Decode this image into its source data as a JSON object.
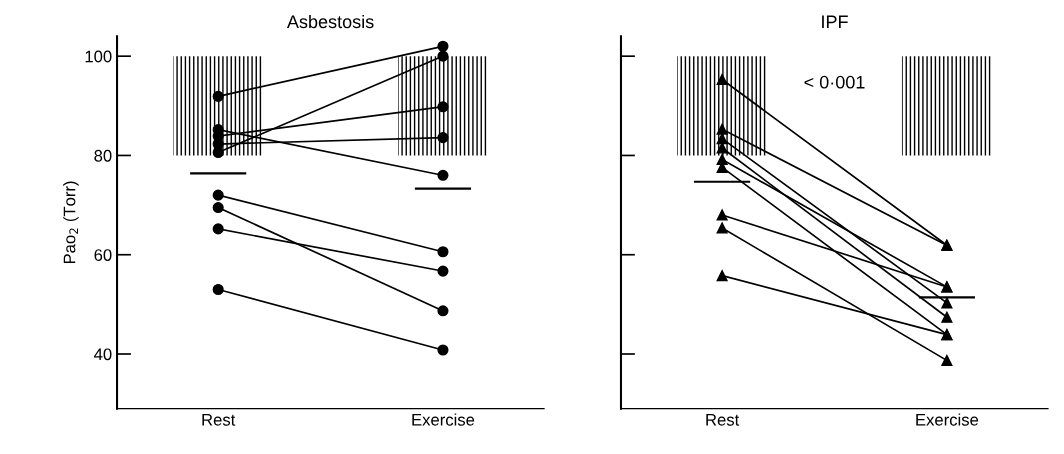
{
  "chart_data": [
    {
      "type": "line",
      "title": "Asbestosis",
      "ylabel": "Pao$_{2}$ (Torr)",
      "categories": [
        "Rest",
        "Exercise"
      ],
      "ylim": [
        29,
        104
      ],
      "yticks": [
        40,
        60,
        80,
        100
      ],
      "marker": "circle",
      "grid": false,
      "legend": false,
      "series": [
        {
          "color": "#000000",
          "values": [
            91.9,
            102
          ]
        },
        {
          "color": "#000000",
          "values": [
            85.2,
            76
          ]
        },
        {
          "color": "#000000",
          "values": [
            83.9,
            89.8
          ]
        },
        {
          "color": "#000000",
          "values": [
            82.3,
            83.6
          ]
        },
        {
          "color": "#000000",
          "values": [
            80.6,
            100
          ]
        },
        {
          "color": "#000000",
          "values": [
            72,
            60.6
          ]
        },
        {
          "color": "#000000",
          "values": [
            69.5,
            48.7
          ]
        },
        {
          "color": "#000000",
          "values": [
            65.2,
            56.7
          ]
        },
        {
          "color": "#000000",
          "values": [
            53,
            40.8
          ]
        },
        {
          "type": "bar",
          "color": "#000000",
          "base": [
            80,
            80
          ],
          "values": [
            20,
            20
          ]
        }
      ],
      "ref_lines": [
        {
          "axis": "y",
          "value": 76.4
        },
        {
          "axis": "y",
          "value": 73.3
        }
      ]
    },
    {
      "type": "line",
      "title": "IPF",
      "categories": [
        "Rest",
        "Exercise"
      ],
      "ylim": [
        29,
        104
      ],
      "yticks": [
        40,
        60,
        80,
        100
      ],
      "tick_labels": "x",
      "marker": "triangle",
      "grid": false,
      "legend": false,
      "annotations": [
        "< 0·001"
      ],
      "series": [
        {
          "color": "#000000",
          "values": [
            95.3,
            61.9
          ]
        },
        {
          "color": "#000000",
          "values": [
            85.3,
            61.9
          ]
        },
        {
          "color": "#000000",
          "values": [
            83.4,
            50.3
          ]
        },
        {
          "color": "#000000",
          "values": [
            81.5,
            47.4
          ]
        },
        {
          "color": "#000000",
          "values": [
            79.2,
            53.5
          ]
        },
        {
          "color": "#000000",
          "values": [
            77.6,
            43.9
          ]
        },
        {
          "color": "#000000",
          "values": [
            68,
            53.5
          ]
        },
        {
          "color": "#000000",
          "values": [
            65.4,
            38.7
          ]
        },
        {
          "color": "#000000",
          "values": [
            55.8,
            43.9
          ]
        },
        {
          "type": "bar",
          "color": "#000000",
          "base": [
            80,
            80
          ],
          "values": [
            20,
            20
          ]
        }
      ],
      "ref_lines": [
        {
          "axis": "y",
          "value": 74.7
        },
        {
          "axis": "y",
          "value": 51.4
        }
      ]
    }
  ]
}
